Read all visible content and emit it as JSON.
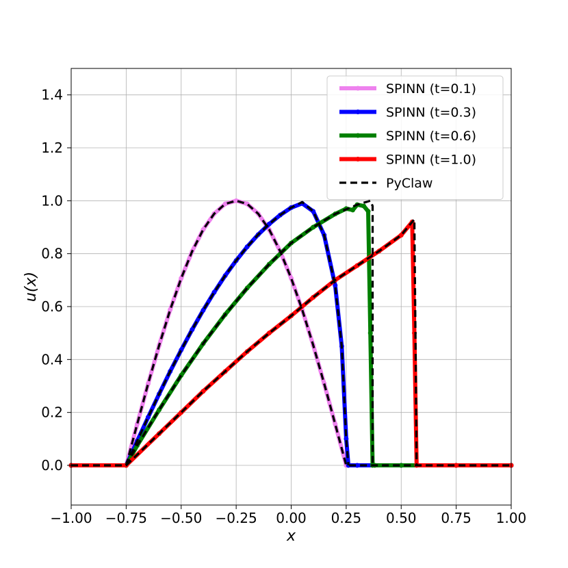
{
  "chart_data": {
    "type": "line",
    "xlabel": "x",
    "ylabel": "u(x)",
    "xlim": [
      -1.0,
      1.0
    ],
    "ylim": [
      -0.15,
      1.5
    ],
    "xticks": [
      "−1.00",
      "−0.75",
      "−0.50",
      "−0.25",
      "0.00",
      "0.25",
      "0.50",
      "0.75",
      "1.00"
    ],
    "xtick_values": [
      -1.0,
      -0.75,
      -0.5,
      -0.25,
      0.0,
      0.25,
      0.5,
      0.75,
      1.0
    ],
    "yticks": [
      "0.0",
      "0.2",
      "0.4",
      "0.6",
      "0.8",
      "1.0",
      "1.2",
      "1.4"
    ],
    "ytick_values": [
      0.0,
      0.2,
      0.4,
      0.6,
      0.8,
      1.0,
      1.2,
      1.4
    ],
    "grid": true,
    "legend_position": "top-right",
    "series": [
      {
        "name": "SPINN (t=0.1)",
        "color": "#ee82ee",
        "style": "solid",
        "x": [
          -1.0,
          -0.75,
          -0.7,
          -0.65,
          -0.6,
          -0.55,
          -0.5,
          -0.45,
          -0.4,
          -0.35,
          -0.3,
          -0.25,
          -0.2,
          -0.15,
          -0.1,
          -0.05,
          0.0,
          0.05,
          0.1,
          0.15,
          0.2,
          0.25,
          0.26,
          0.3,
          0.5,
          0.75,
          1.0
        ],
        "y": [
          0.0,
          0.0,
          0.156,
          0.309,
          0.454,
          0.588,
          0.707,
          0.809,
          0.891,
          0.951,
          0.988,
          1.0,
          0.988,
          0.951,
          0.891,
          0.809,
          0.707,
          0.588,
          0.454,
          0.309,
          0.156,
          0.0,
          0.0,
          0.0,
          0.0,
          0.0,
          0.0
        ]
      },
      {
        "name": "SPINN (t=0.3)",
        "color": "#0000ff",
        "style": "solid",
        "x": [
          -1.0,
          -0.75,
          -0.7,
          -0.65,
          -0.6,
          -0.55,
          -0.5,
          -0.45,
          -0.4,
          -0.35,
          -0.3,
          -0.25,
          -0.2,
          -0.15,
          -0.1,
          -0.05,
          0.0,
          0.05,
          0.1,
          0.15,
          0.2,
          0.23,
          0.25,
          0.26,
          0.3,
          0.5,
          0.75,
          1.0
        ],
        "y": [
          0.0,
          0.0,
          0.092,
          0.182,
          0.27,
          0.355,
          0.436,
          0.513,
          0.586,
          0.654,
          0.717,
          0.774,
          0.826,
          0.872,
          0.912,
          0.946,
          0.974,
          0.99,
          0.96,
          0.87,
          0.68,
          0.45,
          0.1,
          0.0,
          0.0,
          0.0,
          0.0,
          0.0
        ]
      },
      {
        "name": "SPINN (t=0.6)",
        "color": "#008000",
        "style": "solid",
        "x": [
          -1.0,
          -0.75,
          -0.7,
          -0.6,
          -0.5,
          -0.4,
          -0.3,
          -0.2,
          -0.1,
          0.0,
          0.1,
          0.2,
          0.25,
          0.28,
          0.3,
          0.33,
          0.35,
          0.36,
          0.37,
          0.38,
          0.5,
          0.75,
          1.0
        ],
        "y": [
          0.0,
          0.0,
          0.075,
          0.21,
          0.34,
          0.46,
          0.57,
          0.67,
          0.76,
          0.84,
          0.9,
          0.95,
          0.97,
          0.965,
          0.985,
          0.98,
          0.96,
          0.5,
          0.0,
          0.0,
          0.0,
          0.0,
          0.0
        ]
      },
      {
        "name": "SPINN (t=1.0)",
        "color": "#ff0000",
        "style": "solid",
        "x": [
          -1.0,
          -0.75,
          -0.6,
          -0.5,
          -0.4,
          -0.3,
          -0.2,
          -0.1,
          0.0,
          0.1,
          0.2,
          0.3,
          0.4,
          0.5,
          0.55,
          0.56,
          0.57,
          0.75,
          1.0
        ],
        "y": [
          0.0,
          0.0,
          0.12,
          0.2,
          0.28,
          0.355,
          0.43,
          0.5,
          0.565,
          0.635,
          0.7,
          0.755,
          0.81,
          0.87,
          0.92,
          0.5,
          0.0,
          0.0,
          0.0
        ]
      },
      {
        "name": "PyClaw",
        "color": "#000000",
        "style": "dashed",
        "x": [
          -1.0,
          -0.75,
          -0.7,
          -0.65,
          -0.6,
          -0.55,
          -0.5,
          -0.45,
          -0.4,
          -0.35,
          -0.3,
          -0.25,
          -0.2,
          -0.15,
          -0.1,
          -0.05,
          0.0,
          0.05,
          0.1,
          0.15,
          0.2,
          0.25,
          0.3,
          0.5,
          0.75,
          1.0
        ],
        "y": [
          0.0,
          0.0,
          0.156,
          0.309,
          0.454,
          0.588,
          0.707,
          0.809,
          0.891,
          0.951,
          0.988,
          1.0,
          0.988,
          0.951,
          0.891,
          0.809,
          0.707,
          0.588,
          0.454,
          0.309,
          0.156,
          0.0,
          0.0,
          0.0,
          0.0,
          0.0
        ]
      },
      {
        "name": "",
        "color": "#000000",
        "style": "dashed",
        "x": [
          -0.75,
          -0.7,
          -0.65,
          -0.6,
          -0.55,
          -0.5,
          -0.45,
          -0.4,
          -0.35,
          -0.3,
          -0.25,
          -0.2,
          -0.15,
          -0.1,
          -0.05,
          0.0,
          0.05,
          0.1,
          0.15,
          0.2,
          0.23,
          0.25,
          0.26
        ],
        "y": [
          0.0,
          0.092,
          0.182,
          0.27,
          0.355,
          0.436,
          0.513,
          0.586,
          0.654,
          0.717,
          0.774,
          0.826,
          0.872,
          0.912,
          0.946,
          0.974,
          0.995,
          0.96,
          0.87,
          0.68,
          0.45,
          0.1,
          0.0
        ]
      },
      {
        "name": "",
        "color": "#000000",
        "style": "dashed",
        "x": [
          -0.75,
          -0.7,
          -0.6,
          -0.5,
          -0.4,
          -0.3,
          -0.2,
          -0.1,
          0.0,
          0.1,
          0.2,
          0.3,
          0.34,
          0.36,
          0.37,
          0.37
        ],
        "y": [
          0.0,
          0.075,
          0.21,
          0.34,
          0.46,
          0.57,
          0.67,
          0.76,
          0.84,
          0.9,
          0.95,
          0.985,
          0.995,
          1.0,
          0.98,
          0.0
        ]
      },
      {
        "name": "",
        "color": "#000000",
        "style": "dashed",
        "x": [
          -0.75,
          -0.6,
          -0.5,
          -0.4,
          -0.3,
          -0.2,
          -0.1,
          0.0,
          0.1,
          0.2,
          0.3,
          0.4,
          0.5,
          0.56,
          0.565,
          0.57
        ],
        "y": [
          0.0,
          0.12,
          0.2,
          0.28,
          0.355,
          0.43,
          0.5,
          0.565,
          0.635,
          0.7,
          0.755,
          0.81,
          0.87,
          0.93,
          0.5,
          0.0
        ]
      }
    ]
  }
}
